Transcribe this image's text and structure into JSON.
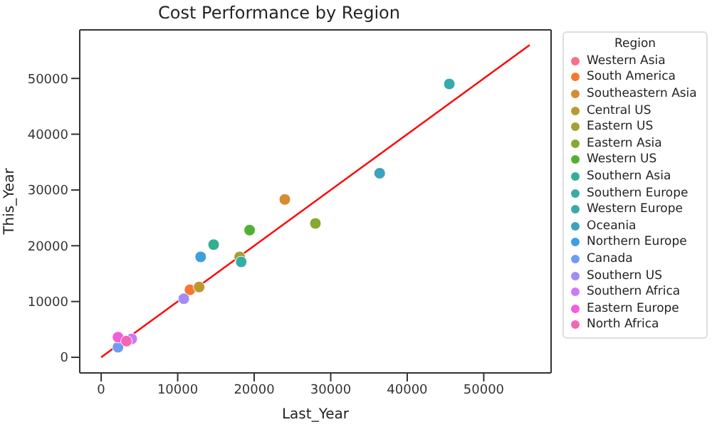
{
  "chart_data": {
    "type": "scatter",
    "title": "Cost Performance by Region",
    "xlabel": "Last_Year",
    "ylabel": "This_Year",
    "legend_title": "Region",
    "legend": "right",
    "grid": false,
    "marker": "circle",
    "xlim": [
      -2800,
      58800
    ],
    "ylim": [
      -2800,
      58700
    ],
    "xticks": [
      0,
      10000,
      20000,
      30000,
      40000,
      50000
    ],
    "yticks": [
      0,
      10000,
      20000,
      30000,
      40000,
      50000
    ],
    "series": [
      {
        "name": "Western Asia",
        "color": "#f77189",
        "x": [
          null
        ],
        "values": [
          null
        ]
      },
      {
        "name": "South America",
        "color": "#f37932",
        "x": [
          11600
        ],
        "values": [
          12100
        ]
      },
      {
        "name": "Southeastern Asia",
        "color": "#d58c32",
        "x": [
          24000
        ],
        "values": [
          28300
        ]
      },
      {
        "name": "Central US",
        "color": "#bb9832",
        "x": [
          12800
        ],
        "values": [
          12600
        ]
      },
      {
        "name": "Eastern US",
        "color": "#a4a031",
        "x": [
          18100
        ],
        "values": [
          18000
        ]
      },
      {
        "name": "Eastern Asia",
        "color": "#88a831",
        "x": [
          28000
        ],
        "values": [
          24000
        ]
      },
      {
        "name": "Western US",
        "color": "#50b131",
        "x": [
          19400
        ],
        "values": [
          22800
        ]
      },
      {
        "name": "Southern Asia",
        "color": "#34ae91",
        "x": [
          14700
        ],
        "values": [
          20200
        ]
      },
      {
        "name": "Southern Europe",
        "color": "#36ada4",
        "x": [
          18300
        ],
        "values": [
          17100
        ]
      },
      {
        "name": "Western Europe",
        "color": "#38aaac",
        "x": [
          45500
        ],
        "values": [
          49000
        ]
      },
      {
        "name": "Oceania",
        "color": "#3ba3bc",
        "x": [
          36400
        ],
        "values": [
          33000
        ]
      },
      {
        "name": "Northern Europe",
        "color": "#3d9fe0",
        "x": [
          13000
        ],
        "values": [
          18000
        ]
      },
      {
        "name": "Canada",
        "color": "#6e9bf4",
        "x": [
          2200
        ],
        "values": [
          1800
        ]
      },
      {
        "name": "Southern US",
        "color": "#a48cf4",
        "x": [
          10800
        ],
        "values": [
          10500
        ]
      },
      {
        "name": "Southern Africa",
        "color": "#cc7af4",
        "x": [
          4000
        ],
        "values": [
          3300
        ]
      },
      {
        "name": "Eastern Europe",
        "color": "#f45cdb",
        "x": [
          2200
        ],
        "values": [
          3600
        ]
      },
      {
        "name": "North Africa",
        "color": "#f565b5",
        "x": [
          3300
        ],
        "values": [
          2900
        ]
      },
      {
        "type": "line",
        "marker": "none",
        "color": "#ff0000",
        "x": [
          0,
          56000
        ],
        "values": [
          0,
          56000
        ]
      }
    ]
  }
}
